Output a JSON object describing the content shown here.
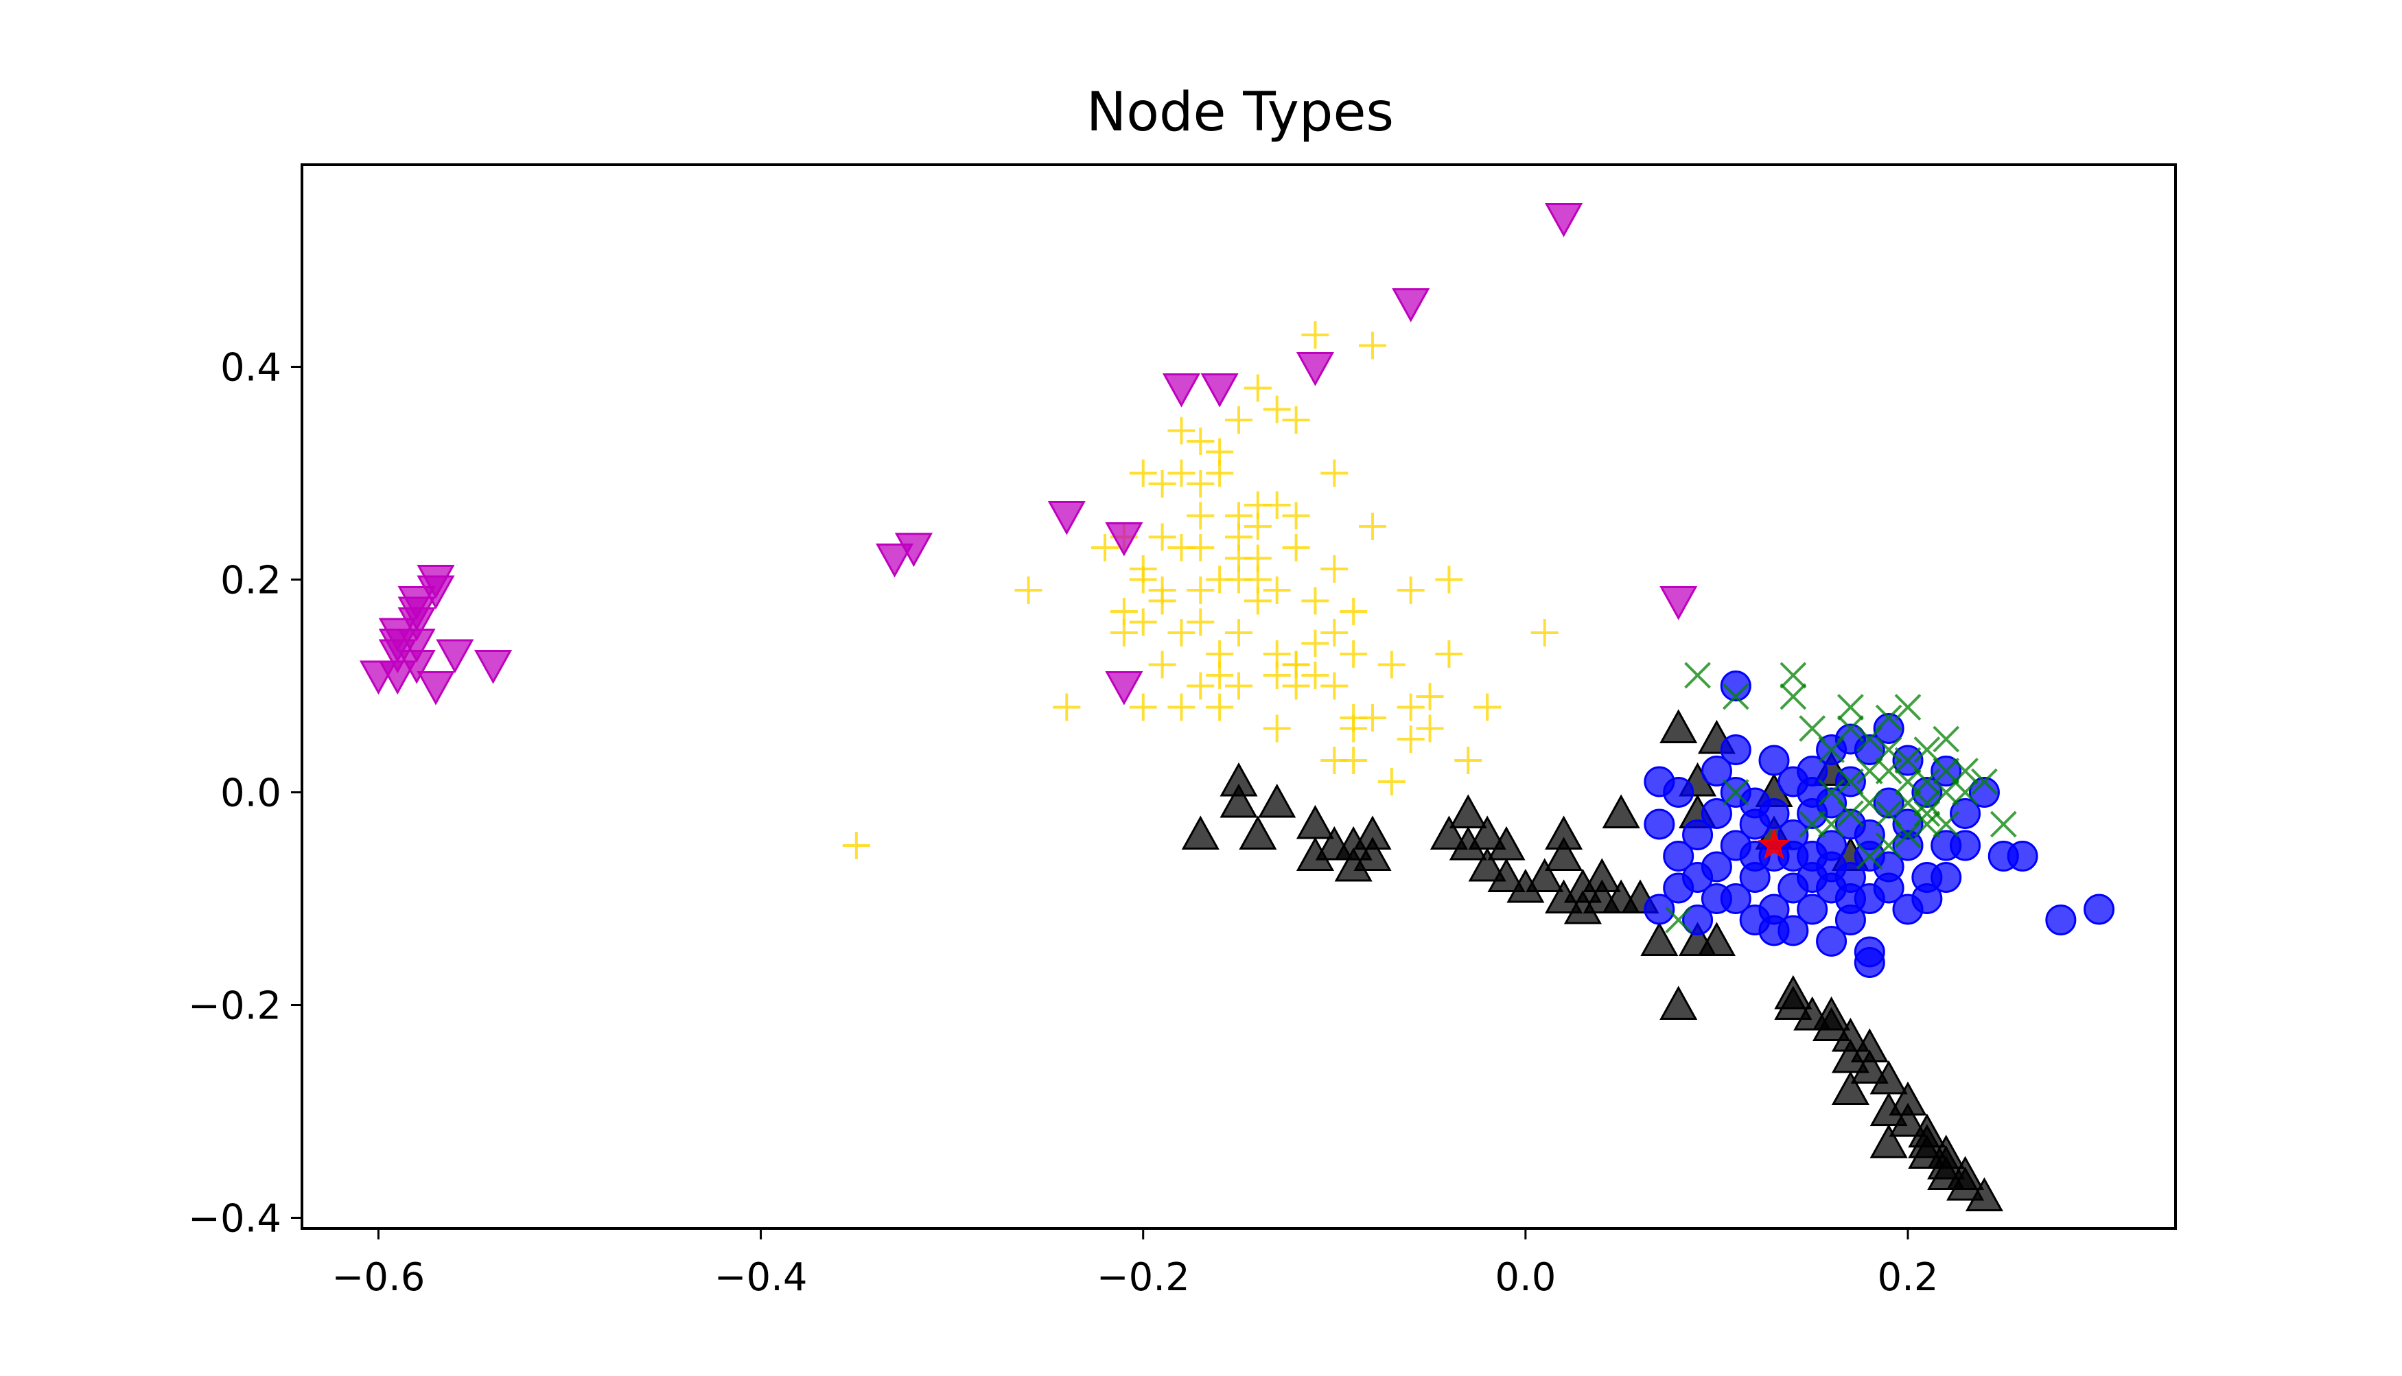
{
  "chart_data": {
    "type": "scatter",
    "title": "Node Types",
    "xlabel": "",
    "ylabel": "",
    "xlim": [
      -0.64,
      0.34
    ],
    "ylim": [
      -0.41,
      0.59
    ],
    "xticks": [
      -0.6,
      -0.4,
      -0.2,
      0.0,
      0.2
    ],
    "yticks": [
      -0.4,
      -0.2,
      0.0,
      0.2,
      0.4
    ],
    "xtick_labels": [
      "−0.6",
      "−0.4",
      "−0.2",
      "0.0",
      "0.2"
    ],
    "ytick_labels": [
      "−0.4",
      "−0.2",
      "0.0",
      "0.2",
      "0.4"
    ],
    "grid": false,
    "legend": "none",
    "series": [
      {
        "marker": "plus",
        "color": "#ffd700",
        "points": [
          [
            -0.18,
            0.34
          ],
          [
            -0.17,
            0.33
          ],
          [
            -0.16,
            0.32
          ],
          [
            -0.14,
            0.38
          ],
          [
            -0.15,
            0.35
          ],
          [
            -0.13,
            0.36
          ],
          [
            -0.12,
            0.35
          ],
          [
            -0.11,
            0.43
          ],
          [
            -0.08,
            0.42
          ],
          [
            -0.1,
            0.3
          ],
          [
            -0.2,
            0.3
          ],
          [
            -0.18,
            0.3
          ],
          [
            -0.16,
            0.3
          ],
          [
            -0.17,
            0.29
          ],
          [
            -0.19,
            0.29
          ],
          [
            -0.14,
            0.27
          ],
          [
            -0.15,
            0.26
          ],
          [
            -0.12,
            0.26
          ],
          [
            -0.13,
            0.27
          ],
          [
            -0.12,
            0.23
          ],
          [
            -0.08,
            0.25
          ],
          [
            -0.22,
            0.23
          ],
          [
            -0.21,
            0.24
          ],
          [
            -0.18,
            0.23
          ],
          [
            -0.17,
            0.23
          ],
          [
            -0.15,
            0.24
          ],
          [
            -0.14,
            0.22
          ],
          [
            -0.16,
            0.2
          ],
          [
            -0.2,
            0.2
          ],
          [
            -0.19,
            0.19
          ],
          [
            -0.17,
            0.19
          ],
          [
            -0.15,
            0.2
          ],
          [
            -0.13,
            0.19
          ],
          [
            -0.1,
            0.21
          ],
          [
            -0.26,
            0.19
          ],
          [
            -0.21,
            0.17
          ],
          [
            -0.19,
            0.18
          ],
          [
            -0.17,
            0.16
          ],
          [
            -0.15,
            0.15
          ],
          [
            -0.14,
            0.18
          ],
          [
            -0.11,
            0.18
          ],
          [
            -0.09,
            0.17
          ],
          [
            -0.2,
            0.16
          ],
          [
            -0.18,
            0.15
          ],
          [
            -0.16,
            0.13
          ],
          [
            -0.13,
            0.13
          ],
          [
            -0.12,
            0.12
          ],
          [
            -0.1,
            0.15
          ],
          [
            -0.11,
            0.14
          ],
          [
            -0.06,
            0.19
          ],
          [
            -0.04,
            0.2
          ],
          [
            -0.19,
            0.12
          ],
          [
            -0.17,
            0.1
          ],
          [
            -0.15,
            0.1
          ],
          [
            -0.13,
            0.11
          ],
          [
            -0.11,
            0.11
          ],
          [
            -0.12,
            0.1
          ],
          [
            -0.18,
            0.08
          ],
          [
            -0.16,
            0.11
          ],
          [
            -0.09,
            0.13
          ],
          [
            -0.07,
            0.12
          ],
          [
            -0.04,
            0.13
          ],
          [
            -0.1,
            0.1
          ],
          [
            -0.08,
            0.07
          ],
          [
            -0.06,
            0.08
          ],
          [
            -0.05,
            0.09
          ],
          [
            -0.02,
            0.08
          ],
          [
            0.01,
            0.15
          ],
          [
            -0.24,
            0.08
          ],
          [
            -0.2,
            0.08
          ],
          [
            -0.16,
            0.08
          ],
          [
            -0.13,
            0.06
          ],
          [
            -0.09,
            0.07
          ],
          [
            -0.09,
            0.06
          ],
          [
            -0.06,
            0.05
          ],
          [
            -0.05,
            0.06
          ],
          [
            -0.1,
            0.03
          ],
          [
            -0.07,
            0.01
          ],
          [
            -0.03,
            0.03
          ],
          [
            -0.35,
            -0.05
          ],
          [
            -0.21,
            0.15
          ],
          [
            -0.2,
            0.21
          ],
          [
            -0.14,
            0.25
          ],
          [
            -0.14,
            0.2
          ],
          [
            -0.12,
            0.12
          ],
          [
            -0.09,
            0.03
          ],
          [
            -0.15,
            0.22
          ],
          [
            -0.17,
            0.26
          ],
          [
            -0.19,
            0.24
          ]
        ]
      },
      {
        "marker": "triangle_down",
        "color": "#bf00bf",
        "points": [
          [
            0.02,
            0.54
          ],
          [
            -0.06,
            0.46
          ],
          [
            -0.11,
            0.4
          ],
          [
            -0.18,
            0.38
          ],
          [
            -0.16,
            0.38
          ],
          [
            -0.24,
            0.26
          ],
          [
            -0.21,
            0.24
          ],
          [
            -0.32,
            0.23
          ],
          [
            -0.33,
            0.22
          ],
          [
            0.08,
            0.18
          ],
          [
            -0.21,
            0.1
          ],
          [
            -0.57,
            0.2
          ],
          [
            -0.57,
            0.19
          ],
          [
            -0.58,
            0.18
          ],
          [
            -0.58,
            0.17
          ],
          [
            -0.58,
            0.16
          ],
          [
            -0.59,
            0.15
          ],
          [
            -0.59,
            0.14
          ],
          [
            -0.59,
            0.13
          ],
          [
            -0.58,
            0.12
          ],
          [
            -0.6,
            0.11
          ],
          [
            -0.59,
            0.11
          ],
          [
            -0.57,
            0.1
          ],
          [
            -0.56,
            0.13
          ],
          [
            -0.54,
            0.12
          ],
          [
            -0.58,
            0.14
          ]
        ]
      },
      {
        "marker": "triangle_up",
        "color": "#000000",
        "points": [
          [
            -0.17,
            -0.04
          ],
          [
            -0.15,
            0.01
          ],
          [
            -0.15,
            -0.01
          ],
          [
            -0.14,
            -0.04
          ],
          [
            -0.13,
            -0.01
          ],
          [
            -0.11,
            -0.03
          ],
          [
            -0.11,
            -0.06
          ],
          [
            -0.1,
            -0.05
          ],
          [
            -0.09,
            -0.05
          ],
          [
            -0.09,
            -0.07
          ],
          [
            -0.08,
            -0.04
          ],
          [
            -0.08,
            -0.06
          ],
          [
            -0.04,
            -0.04
          ],
          [
            -0.03,
            -0.02
          ],
          [
            -0.03,
            -0.05
          ],
          [
            -0.02,
            -0.04
          ],
          [
            -0.02,
            -0.07
          ],
          [
            -0.01,
            -0.05
          ],
          [
            -0.01,
            -0.08
          ],
          [
            0.0,
            -0.09
          ],
          [
            0.01,
            -0.08
          ],
          [
            0.02,
            -0.1
          ],
          [
            0.02,
            -0.04
          ],
          [
            0.02,
            -0.06
          ],
          [
            0.03,
            -0.09
          ],
          [
            0.03,
            -0.11
          ],
          [
            0.04,
            -0.1
          ],
          [
            0.04,
            -0.08
          ],
          [
            0.05,
            -0.1
          ],
          [
            0.05,
            -0.02
          ],
          [
            0.06,
            -0.1
          ],
          [
            0.07,
            -0.14
          ],
          [
            0.08,
            -0.2
          ],
          [
            0.09,
            -0.14
          ],
          [
            0.1,
            -0.14
          ],
          [
            0.08,
            0.06
          ],
          [
            0.09,
            -0.02
          ],
          [
            0.09,
            0.01
          ],
          [
            0.1,
            0.05
          ],
          [
            0.13,
            -0.04
          ],
          [
            0.13,
            0.0
          ],
          [
            0.16,
            0.02
          ],
          [
            0.17,
            -0.06
          ],
          [
            0.14,
            -0.2
          ],
          [
            0.15,
            -0.21
          ],
          [
            0.16,
            -0.22
          ],
          [
            0.17,
            -0.23
          ],
          [
            0.17,
            -0.25
          ],
          [
            0.18,
            -0.26
          ],
          [
            0.19,
            -0.27
          ],
          [
            0.19,
            -0.3
          ],
          [
            0.2,
            -0.31
          ],
          [
            0.21,
            -0.32
          ],
          [
            0.22,
            -0.34
          ],
          [
            0.22,
            -0.35
          ],
          [
            0.23,
            -0.36
          ],
          [
            0.23,
            -0.37
          ],
          [
            0.24,
            -0.38
          ],
          [
            0.21,
            -0.33
          ],
          [
            0.2,
            -0.29
          ],
          [
            0.18,
            -0.24
          ],
          [
            0.16,
            -0.21
          ],
          [
            0.17,
            -0.28
          ],
          [
            0.14,
            -0.19
          ],
          [
            0.22,
            -0.36
          ],
          [
            0.21,
            -0.34
          ],
          [
            0.19,
            -0.33
          ]
        ]
      },
      {
        "marker": "circle",
        "color": "#0000ff",
        "points": [
          [
            0.11,
            0.1
          ],
          [
            0.07,
            0.01
          ],
          [
            0.07,
            -0.03
          ],
          [
            0.08,
            0.0
          ],
          [
            0.08,
            -0.06
          ],
          [
            0.09,
            -0.04
          ],
          [
            0.09,
            -0.08
          ],
          [
            0.1,
            0.02
          ],
          [
            0.1,
            -0.02
          ],
          [
            0.1,
            -0.07
          ],
          [
            0.11,
            0.04
          ],
          [
            0.11,
            -0.05
          ],
          [
            0.11,
            -0.1
          ],
          [
            0.12,
            -0.03
          ],
          [
            0.12,
            -0.08
          ],
          [
            0.12,
            -0.12
          ],
          [
            0.13,
            0.03
          ],
          [
            0.13,
            -0.02
          ],
          [
            0.13,
            -0.06
          ],
          [
            0.13,
            -0.11
          ],
          [
            0.14,
            0.01
          ],
          [
            0.14,
            -0.04
          ],
          [
            0.14,
            -0.09
          ],
          [
            0.14,
            -0.13
          ],
          [
            0.15,
            0.02
          ],
          [
            0.15,
            -0.02
          ],
          [
            0.15,
            -0.06
          ],
          [
            0.15,
            -0.11
          ],
          [
            0.16,
            0.04
          ],
          [
            0.16,
            -0.01
          ],
          [
            0.16,
            -0.05
          ],
          [
            0.16,
            -0.09
          ],
          [
            0.16,
            -0.14
          ],
          [
            0.17,
            0.01
          ],
          [
            0.17,
            -0.03
          ],
          [
            0.17,
            -0.08
          ],
          [
            0.17,
            -0.12
          ],
          [
            0.18,
            0.04
          ],
          [
            0.18,
            -0.04
          ],
          [
            0.18,
            -0.1
          ],
          [
            0.18,
            -0.15
          ],
          [
            0.19,
            0.06
          ],
          [
            0.19,
            -0.01
          ],
          [
            0.19,
            -0.07
          ],
          [
            0.2,
            0.03
          ],
          [
            0.2,
            -0.05
          ],
          [
            0.2,
            -0.11
          ],
          [
            0.21,
            0.0
          ],
          [
            0.21,
            -0.08
          ],
          [
            0.22,
            0.02
          ],
          [
            0.22,
            -0.05
          ],
          [
            0.23,
            -0.02
          ],
          [
            0.24,
            0.0
          ],
          [
            0.25,
            -0.06
          ],
          [
            0.26,
            -0.06
          ],
          [
            0.28,
            -0.12
          ],
          [
            0.3,
            -0.11
          ],
          [
            0.07,
            -0.11
          ],
          [
            0.08,
            -0.09
          ],
          [
            0.09,
            -0.12
          ],
          [
            0.1,
            -0.1
          ],
          [
            0.12,
            -0.01
          ],
          [
            0.13,
            -0.13
          ],
          [
            0.14,
            -0.06
          ],
          [
            0.15,
            -0.08
          ],
          [
            0.16,
            -0.07
          ],
          [
            0.17,
            -0.1
          ],
          [
            0.18,
            -0.06
          ],
          [
            0.19,
            -0.09
          ],
          [
            0.2,
            -0.03
          ],
          [
            0.21,
            -0.1
          ],
          [
            0.22,
            -0.08
          ],
          [
            0.23,
            -0.05
          ],
          [
            0.11,
            0.0
          ],
          [
            0.12,
            -0.06
          ],
          [
            0.15,
            0.0
          ],
          [
            0.17,
            0.05
          ],
          [
            0.18,
            -0.16
          ]
        ]
      },
      {
        "marker": "x",
        "color": "#008000",
        "points": [
          [
            0.09,
            0.11
          ],
          [
            0.11,
            0.09
          ],
          [
            0.14,
            0.11
          ],
          [
            0.14,
            0.09
          ],
          [
            0.17,
            0.08
          ],
          [
            0.19,
            0.07
          ],
          [
            0.2,
            0.08
          ],
          [
            0.17,
            0.06
          ],
          [
            0.15,
            0.06
          ],
          [
            0.16,
            0.04
          ],
          [
            0.18,
            0.05
          ],
          [
            0.19,
            0.04
          ],
          [
            0.2,
            0.03
          ],
          [
            0.21,
            0.04
          ],
          [
            0.22,
            0.05
          ],
          [
            0.22,
            0.02
          ],
          [
            0.21,
            0.01
          ],
          [
            0.2,
            0.01
          ],
          [
            0.19,
            0.02
          ],
          [
            0.18,
            0.02
          ],
          [
            0.17,
            0.01
          ],
          [
            0.23,
            0.02
          ],
          [
            0.24,
            0.01
          ],
          [
            0.22,
            0.0
          ],
          [
            0.21,
            -0.01
          ],
          [
            0.2,
            -0.01
          ],
          [
            0.19,
            -0.02
          ],
          [
            0.18,
            -0.01
          ],
          [
            0.17,
            -0.02
          ],
          [
            0.16,
            -0.03
          ],
          [
            0.15,
            -0.03
          ],
          [
            0.21,
            -0.03
          ],
          [
            0.22,
            -0.03
          ],
          [
            0.2,
            -0.04
          ],
          [
            0.19,
            -0.05
          ],
          [
            0.18,
            -0.06
          ],
          [
            0.25,
            -0.03
          ],
          [
            0.23,
            0.0
          ],
          [
            0.21,
            -0.02
          ],
          [
            0.16,
            0.0
          ],
          [
            0.08,
            -0.12
          ],
          [
            0.11,
            0.0
          ]
        ]
      },
      {
        "marker": "star",
        "color": "#ff0000",
        "points": [
          [
            0.13,
            -0.05
          ]
        ]
      }
    ]
  }
}
